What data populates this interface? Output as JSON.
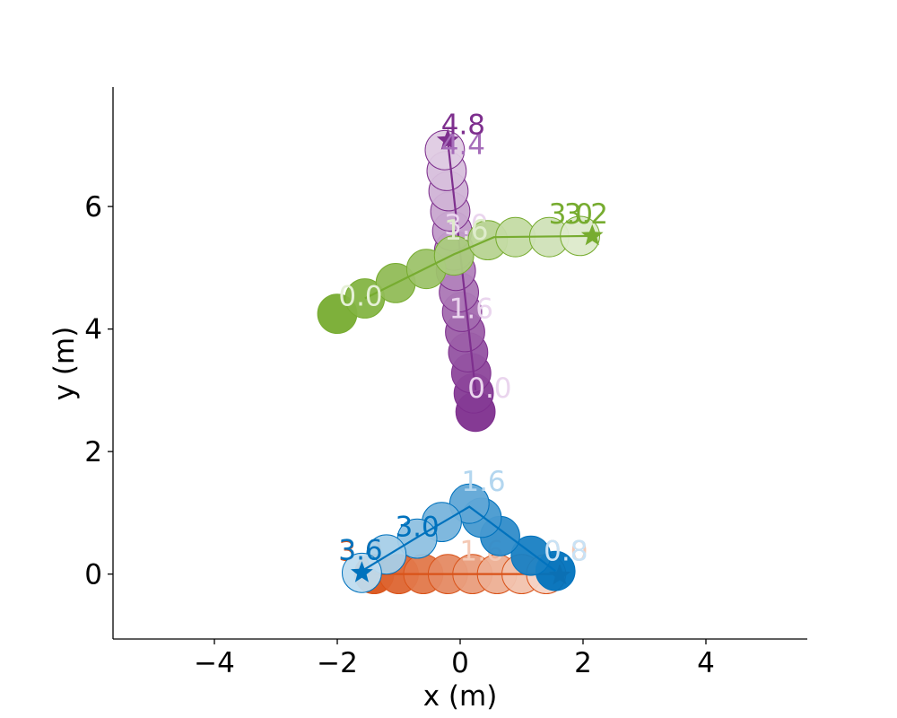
{
  "chart_data": {
    "type": "scatter",
    "title": "",
    "xlabel": "x (m)",
    "ylabel": "y (m)",
    "xlim": [
      -5.65,
      5.65
    ],
    "ylim": [
      -1.06,
      7.95
    ],
    "xticks": [
      -4,
      -2,
      0,
      2,
      4
    ],
    "yticks": [
      0,
      2,
      4,
      6
    ],
    "xtick_labels": [
      "−4",
      "−2",
      "0",
      "2",
      "4"
    ],
    "ytick_labels": [
      "0",
      "2",
      "4",
      "6"
    ],
    "grid": false,
    "legend": "none",
    "agent_radius": 0.32,
    "series": [
      {
        "color": "#d95319",
        "circles": [
          {
            "x": -1.4,
            "y": 0.0
          },
          {
            "x": -1.0,
            "y": 0.0
          },
          {
            "x": -0.6,
            "y": 0.0
          },
          {
            "x": -0.2,
            "y": 0.0
          },
          {
            "x": 0.2,
            "y": 0.0
          },
          {
            "x": 0.6,
            "y": 0.0
          },
          {
            "x": 1.0,
            "y": 0.0
          },
          {
            "x": 1.4,
            "y": 0.0
          }
        ],
        "path": [
          {
            "x": -1.4,
            "y": 0.0
          },
          {
            "x": 1.62,
            "y": 0.0
          }
        ],
        "goal": {
          "x": 1.62,
          "y": -0.02
        },
        "time_labels": [
          {
            "text": "3.0",
            "x": -1.62,
            "y": 0.22,
            "color": "#d95319"
          },
          {
            "text": "1.6",
            "x": 0.35,
            "y": 0.22,
            "color": "#f4c9b5"
          },
          {
            "text": "0.0",
            "x": 1.72,
            "y": 0.22,
            "color": "#f4c9b5"
          }
        ]
      },
      {
        "color": "#0072bd",
        "circles": [
          {
            "x": 1.55,
            "y": 0.05
          },
          {
            "x": 1.15,
            "y": 0.3
          },
          {
            "x": 0.65,
            "y": 0.62
          },
          {
            "x": 0.35,
            "y": 0.92
          },
          {
            "x": 0.15,
            "y": 1.15
          },
          {
            "x": -0.3,
            "y": 0.85
          },
          {
            "x": -0.7,
            "y": 0.58
          },
          {
            "x": -1.2,
            "y": 0.32
          },
          {
            "x": -1.6,
            "y": 0.02
          }
        ],
        "path": [
          {
            "x": 1.55,
            "y": 0.05
          },
          {
            "x": 0.15,
            "y": 1.1
          },
          {
            "x": -0.7,
            "y": 0.6
          },
          {
            "x": -1.6,
            "y": 0.05
          }
        ],
        "goal": {
          "x": -1.6,
          "y": 0.02
        },
        "time_labels": [
          {
            "text": "0.8",
            "x": 1.72,
            "y": 0.22,
            "color": "#c9e2f5"
          },
          {
            "text": "1.6",
            "x": 0.38,
            "y": 1.36,
            "color": "#b3d6ef"
          },
          {
            "text": "3.0",
            "x": -0.7,
            "y": 0.62,
            "color": "#0072bd"
          },
          {
            "text": "3.6",
            "x": -1.62,
            "y": 0.24,
            "color": "#0072bd"
          }
        ]
      },
      {
        "color": "#7e2f8e",
        "circles": [
          {
            "x": 0.25,
            "y": 2.65
          },
          {
            "x": 0.22,
            "y": 2.95
          },
          {
            "x": 0.18,
            "y": 3.28
          },
          {
            "x": 0.13,
            "y": 3.62
          },
          {
            "x": 0.08,
            "y": 3.95
          },
          {
            "x": 0.03,
            "y": 4.28
          },
          {
            "x": -0.02,
            "y": 4.6
          },
          {
            "x": -0.07,
            "y": 4.95
          },
          {
            "x": -0.1,
            "y": 5.28
          },
          {
            "x": -0.13,
            "y": 5.6
          },
          {
            "x": -0.16,
            "y": 5.92
          },
          {
            "x": -0.19,
            "y": 6.25
          },
          {
            "x": -0.22,
            "y": 6.58
          },
          {
            "x": -0.25,
            "y": 6.92
          }
        ],
        "path": [
          {
            "x": 0.25,
            "y": 3.0
          },
          {
            "x": -0.2,
            "y": 7.05
          }
        ],
        "goal": {
          "x": -0.2,
          "y": 7.08
        },
        "time_labels": [
          {
            "text": "0.0",
            "x": 0.48,
            "y": 2.88,
            "color": "#ead5ee"
          },
          {
            "text": "1.6",
            "x": 0.18,
            "y": 4.18,
            "color": "#ead5ee"
          },
          {
            "text": "3.0",
            "x": 0.1,
            "y": 5.55,
            "color": "#ead5ee"
          },
          {
            "text": "4.4",
            "x": 0.05,
            "y": 6.85,
            "color": "#a66dba"
          },
          {
            "text": "4.8",
            "x": 0.05,
            "y": 7.18,
            "color": "#7e2f8e"
          }
        ]
      },
      {
        "color": "#77ac30",
        "circles": [
          {
            "x": -2.0,
            "y": 4.25
          },
          {
            "x": -1.55,
            "y": 4.5
          },
          {
            "x": -1.05,
            "y": 4.75
          },
          {
            "x": -0.55,
            "y": 4.98
          },
          {
            "x": -0.1,
            "y": 5.2
          },
          {
            "x": 0.45,
            "y": 5.45
          },
          {
            "x": 0.9,
            "y": 5.5
          },
          {
            "x": 1.45,
            "y": 5.5
          },
          {
            "x": 1.95,
            "y": 5.52
          }
        ],
        "path": [
          {
            "x": -1.55,
            "y": 4.5
          },
          {
            "x": -0.1,
            "y": 5.22
          },
          {
            "x": 0.55,
            "y": 5.5
          },
          {
            "x": 2.15,
            "y": 5.52
          }
        ],
        "goal": {
          "x": 2.15,
          "y": 5.52
        },
        "time_labels": [
          {
            "text": "0.0",
            "x": -1.62,
            "y": 4.38,
            "color": "#e5f0d6"
          },
          {
            "text": "1.6",
            "x": 0.1,
            "y": 5.46,
            "color": "#dfeccc"
          },
          {
            "text": "3.0",
            "x": 1.8,
            "y": 5.72,
            "color": "#77ac30"
          },
          {
            "text": "3.2",
            "x": 2.05,
            "y": 5.72,
            "color": "#77ac30"
          }
        ]
      }
    ]
  }
}
